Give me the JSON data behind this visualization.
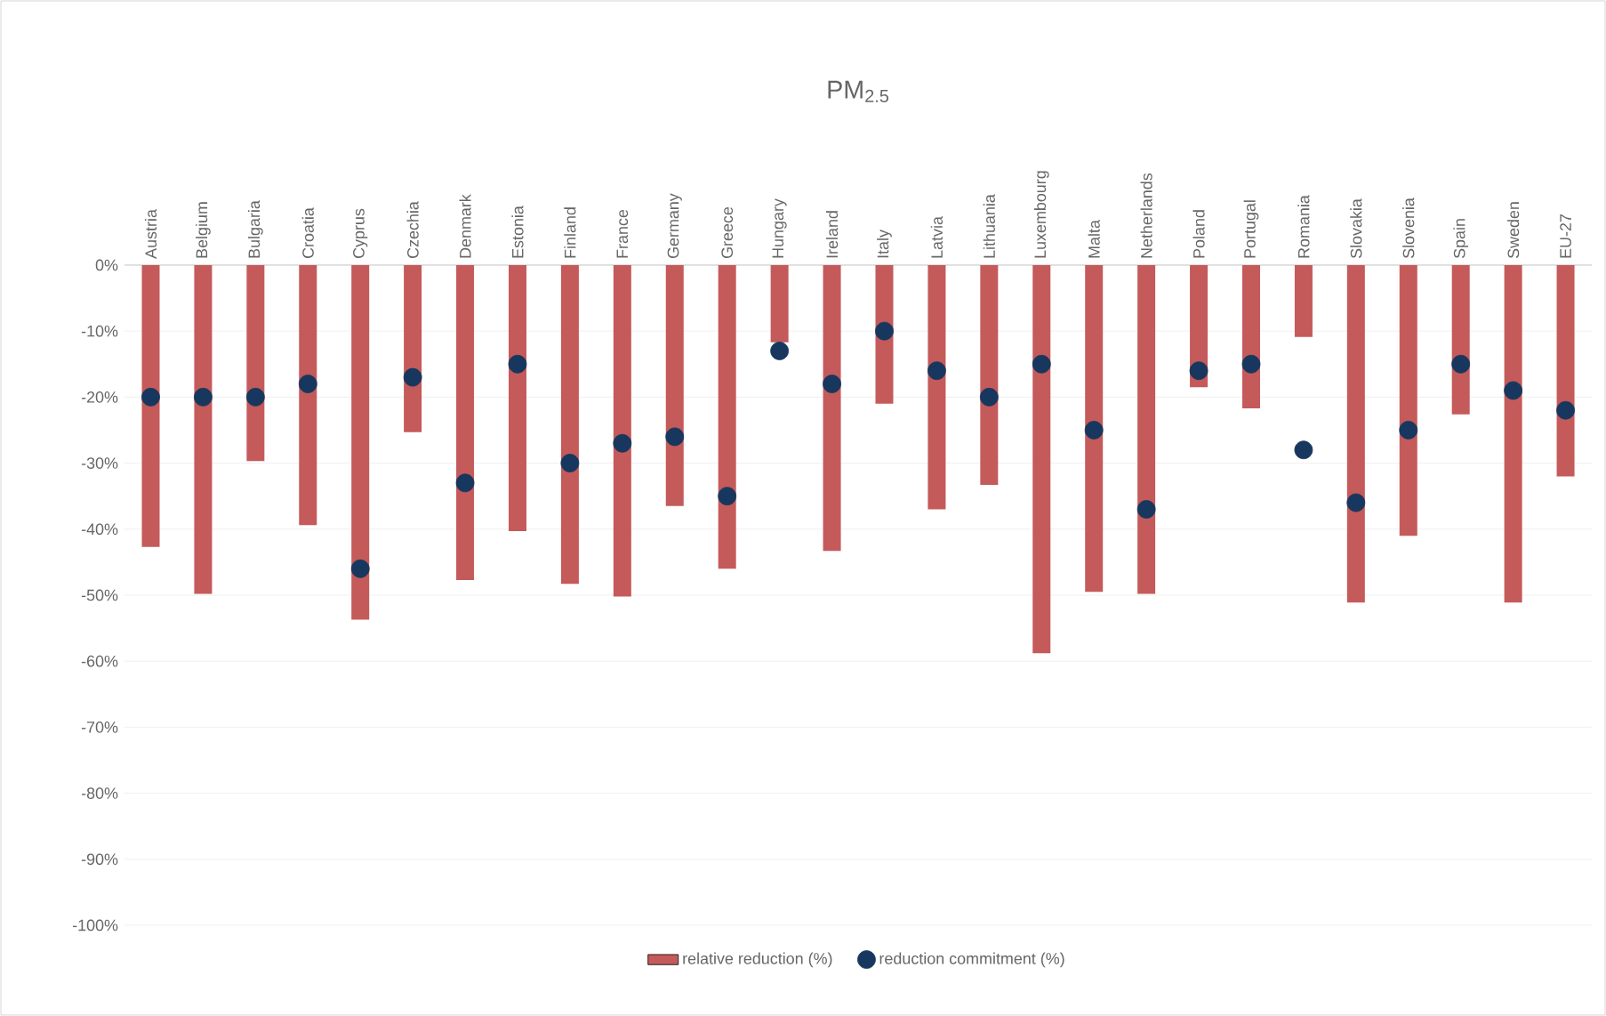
{
  "chart_data": {
    "type": "bar",
    "title": "PM$_{2.5}$",
    "categories": [
      "Austria",
      "Belgium",
      "Bulgaria",
      "Croatia",
      "Cyprus",
      "Czechia",
      "Denmark",
      "Estonia",
      "Finland",
      "France",
      "Germany",
      "Greece",
      "Hungary",
      "Ireland",
      "Italy",
      "Latvia",
      "Lithuania",
      "Luxembourg",
      "Malta",
      "Netherlands",
      "Poland",
      "Portugal",
      "Romania",
      "Slovakia",
      "Slovenia",
      "Spain",
      "Sweden",
      "EU-27"
    ],
    "series": [
      {
        "name": "relative reduction (%)",
        "color": "#c55a5a",
        "values": [
          -42.7,
          -49.8,
          -29.7,
          -39.4,
          -53.7,
          -25.3,
          -47.7,
          -40.3,
          -48.3,
          -50.2,
          -36.5,
          -46,
          -11.7,
          -43.3,
          -21,
          -37,
          -33.3,
          -58.8,
          -49.5,
          -49.8,
          -18.5,
          -21.7,
          -10.9,
          -51.1,
          -41,
          -22.6,
          -51.1,
          -32
        ]
      },
      {
        "name": "reduction commitment (%)",
        "type": "scatter",
        "color": "#17375e",
        "values": [
          -20,
          -20,
          -20,
          -18,
          -46,
          -17,
          -33,
          -15,
          -30,
          -27,
          -26,
          -35,
          -13,
          -18,
          -10,
          -16,
          -20,
          -15,
          -25,
          -37,
          -16,
          -15,
          -28,
          -36,
          -25,
          -15,
          -19,
          -22
        ]
      }
    ],
    "ylim": [
      -100,
      0
    ],
    "yticks": [
      {
        "value": -100,
        "label": "-100%"
      },
      {
        "value": -90,
        "label": "-90%"
      },
      {
        "value": -80,
        "label": "-80%"
      },
      {
        "value": -70,
        "label": "-70%"
      },
      {
        "value": -60,
        "label": "-60%"
      },
      {
        "value": -50,
        "label": "-50%"
      },
      {
        "value": -40,
        "label": "-40%"
      },
      {
        "value": -30,
        "label": "-30%"
      },
      {
        "value": -20,
        "label": "-20%"
      },
      {
        "value": -10,
        "label": "-10%"
      },
      {
        "value": 0,
        "label": "0%"
      }
    ],
    "grid": "y",
    "legend": "bottom"
  }
}
